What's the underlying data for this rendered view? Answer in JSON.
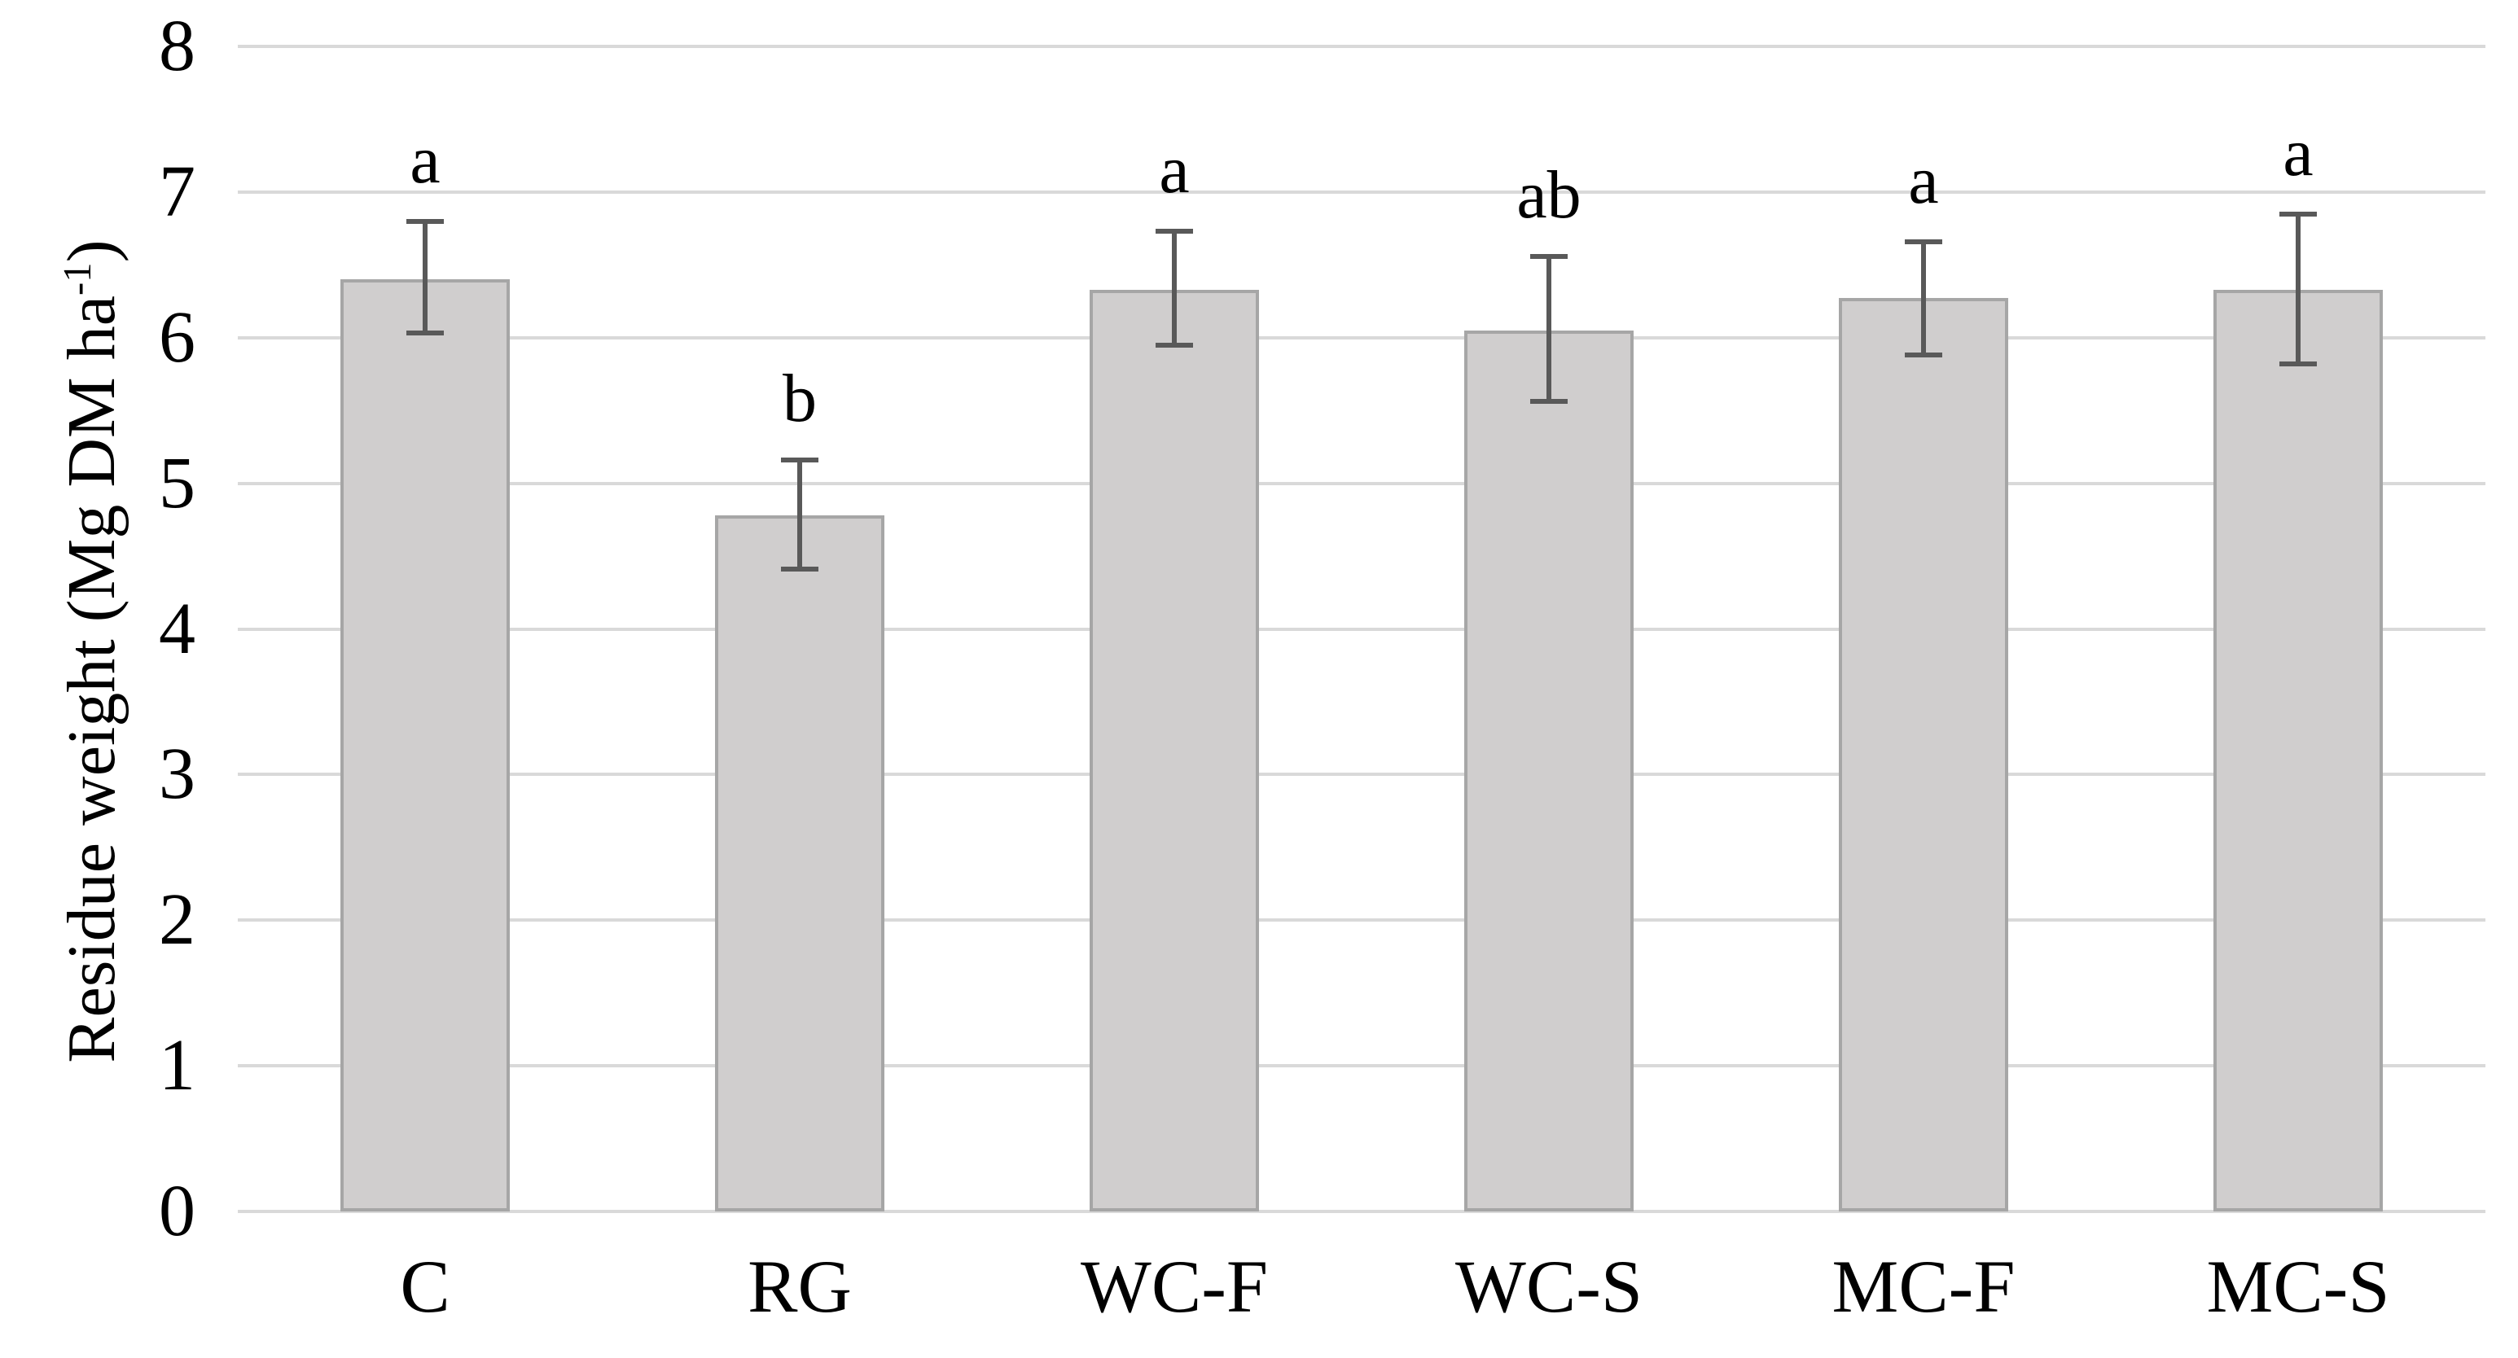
{
  "page": {
    "background": "#ffffff"
  },
  "chart_data": {
    "type": "bar",
    "title": "",
    "xlabel": "",
    "ylabel": "Residue weight (Mg DM ha⁻¹)",
    "ylabel_main": "Residue weight (Mg DM ha",
    "ylabel_sup": "-1",
    "ylabel_suffix": ")",
    "ylim": [
      0,
      8
    ],
    "yticks": [
      0,
      1,
      2,
      3,
      4,
      5,
      6,
      7,
      8
    ],
    "grid": "horizontal-gridlines",
    "legend": "none",
    "bar_width_ratio": 0.452,
    "categories": [
      "C",
      "RG",
      "WC-F",
      "WC-S",
      "MC-F",
      "MC-S"
    ],
    "values": [
      6.4,
      4.78,
      6.33,
      6.05,
      6.27,
      6.33
    ],
    "points": [
      {
        "category": "C",
        "value": 6.4,
        "whisker_low": 6.03,
        "whisker_high": 6.8,
        "letter": "a"
      },
      {
        "category": "RG",
        "value": 4.78,
        "whisker_low": 4.41,
        "whisker_high": 5.16,
        "letter": "b"
      },
      {
        "category": "WC-F",
        "value": 6.33,
        "whisker_low": 5.95,
        "whisker_high": 6.73,
        "letter": "a"
      },
      {
        "category": "WC-S",
        "value": 6.05,
        "whisker_low": 5.56,
        "whisker_high": 6.56,
        "letter": "ab"
      },
      {
        "category": "MC-F",
        "value": 6.27,
        "whisker_low": 5.88,
        "whisker_high": 6.66,
        "letter": "a"
      },
      {
        "category": "MC-S",
        "value": 6.33,
        "whisker_low": 5.82,
        "whisker_high": 6.85,
        "letter": "a"
      }
    ],
    "colors": {
      "bar_fill": "#d0cece",
      "bar_border": "#a6a6a6",
      "gridline": "#d9d9d9",
      "error_bar": "#595959",
      "text": "#000000",
      "background": "#ffffff"
    }
  }
}
